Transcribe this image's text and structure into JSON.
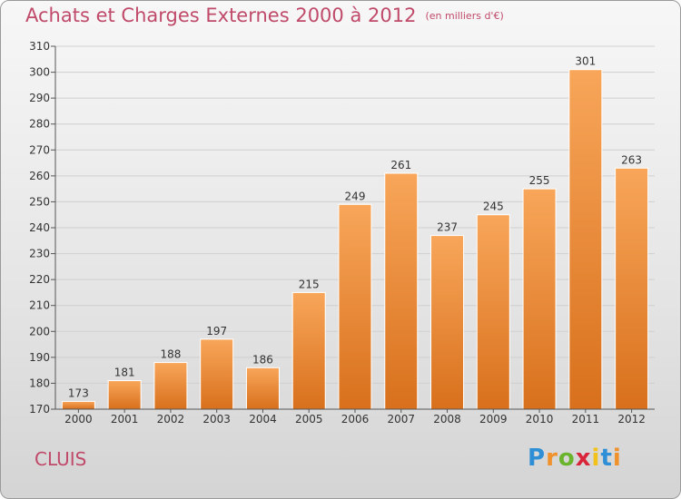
{
  "title": "Achats et Charges Externes 2000 à 2012",
  "unit": "(en milliers d'€)",
  "place": "CLUIS",
  "logo": [
    "P",
    "r",
    "o",
    "x",
    "i",
    "t",
    "i"
  ],
  "colors": {
    "bar_top": "#f8a65a",
    "bar_bottom": "#d8701c",
    "title": "#c04a6a"
  },
  "chart_data": {
    "type": "bar",
    "title": "Achats et Charges Externes 2000 à 2012",
    "subtitle": "(en milliers d'€)",
    "xlabel": "",
    "ylabel": "",
    "ylim": [
      170,
      310
    ],
    "yticks": [
      170,
      180,
      190,
      200,
      210,
      220,
      230,
      240,
      250,
      260,
      270,
      280,
      290,
      300,
      310
    ],
    "grid": true,
    "categories": [
      "2000",
      "2001",
      "2002",
      "2003",
      "2004",
      "2005",
      "2006",
      "2007",
      "2008",
      "2009",
      "2010",
      "2011",
      "2012"
    ],
    "values": [
      173,
      181,
      188,
      197,
      186,
      215,
      249,
      261,
      237,
      245,
      255,
      301,
      263
    ]
  }
}
